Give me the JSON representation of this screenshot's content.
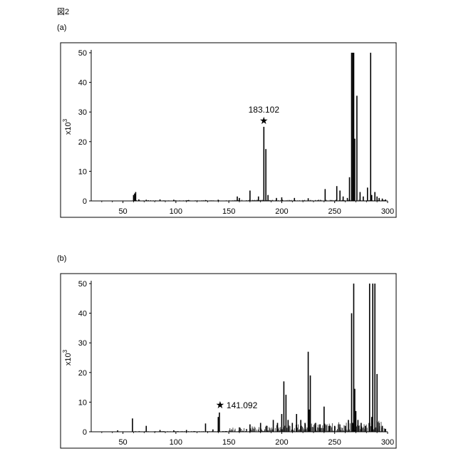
{
  "figure": {
    "title": "図2"
  },
  "chart_data": [
    {
      "type": "bar",
      "panel_label": "(a)",
      "ylabel_base": "x10",
      "ylabel_exp": "3",
      "xlim": [
        20,
        300
      ],
      "ylim": [
        0,
        50
      ],
      "xticks": [
        50,
        100,
        150,
        200,
        250,
        300
      ],
      "yticks": [
        0,
        10,
        20,
        30,
        40,
        50
      ],
      "grid": false,
      "annotation": {
        "x": 183.102,
        "y": 25,
        "marker": "★",
        "text": "183.102"
      },
      "series": [
        {
          "values": [
            [
              60,
              2
            ],
            [
              61,
              2.5
            ],
            [
              62,
              3
            ],
            [
              65,
              0.5
            ],
            [
              72,
              0.4
            ],
            [
              85,
              0.5
            ],
            [
              98,
              0.4
            ],
            [
              112,
              0.3
            ],
            [
              128,
              0.3
            ],
            [
              140,
              0.4
            ],
            [
              158,
              1.5
            ],
            [
              160,
              1
            ],
            [
              170,
              3.5
            ],
            [
              178,
              1.5
            ],
            [
              183.102,
              25
            ],
            [
              185,
              17.5
            ],
            [
              187,
              2
            ],
            [
              195,
              1
            ],
            [
              200,
              1.2
            ],
            [
              212,
              1
            ],
            [
              225,
              0.9
            ],
            [
              241,
              4
            ],
            [
              252,
              5
            ],
            [
              255,
              3.5
            ],
            [
              258,
              1.5
            ],
            [
              262,
              1
            ],
            [
              264,
              8
            ],
            [
              266,
              50
            ],
            [
              267,
              50
            ],
            [
              268,
              50
            ],
            [
              269,
              21
            ],
            [
              271,
              35.5
            ],
            [
              274,
              3
            ],
            [
              277,
              1.5
            ],
            [
              281,
              4.5
            ],
            [
              284,
              50
            ],
            [
              285,
              2
            ],
            [
              288,
              3
            ],
            [
              290,
              1.5
            ],
            [
              292,
              1
            ],
            [
              295,
              0.8
            ],
            [
              298,
              0.5
            ]
          ]
        }
      ]
    },
    {
      "type": "bar",
      "panel_label": "(b)",
      "ylabel_base": "x10",
      "ylabel_exp": "3",
      "xlim": [
        20,
        300
      ],
      "ylim": [
        0,
        50
      ],
      "xticks": [
        50,
        100,
        150,
        200,
        250,
        300
      ],
      "yticks": [
        0,
        10,
        20,
        30,
        40,
        50
      ],
      "grid": false,
      "annotation": {
        "x": 141.092,
        "y": 7,
        "marker": "★",
        "text": "141.092"
      },
      "series": [
        {
          "values": [
            [
              45,
              0.5
            ],
            [
              59,
              4.5
            ],
            [
              72,
              2
            ],
            [
              85,
              0.6
            ],
            [
              98,
              0.5
            ],
            [
              110,
              0.6
            ],
            [
              128,
              2.8
            ],
            [
              135,
              0.8
            ],
            [
              140,
              5
            ],
            [
              141.092,
              6.5
            ],
            [
              160,
              1.5
            ],
            [
              170,
              2.5
            ],
            [
              180,
              3
            ],
            [
              186,
              2
            ],
            [
              192,
              4
            ],
            [
              196,
              3
            ],
            [
              200,
              6
            ],
            [
              202,
              17
            ],
            [
              204,
              12.5
            ],
            [
              206,
              4
            ],
            [
              210,
              3
            ],
            [
              214,
              6
            ],
            [
              218,
              4
            ],
            [
              222,
              3
            ],
            [
              225,
              27
            ],
            [
              226,
              7.5
            ],
            [
              227,
              19
            ],
            [
              232,
              3
            ],
            [
              236,
              2.5
            ],
            [
              240,
              8.5
            ],
            [
              245,
              2
            ],
            [
              250,
              2
            ],
            [
              255,
              1.5
            ],
            [
              260,
              2
            ],
            [
              263,
              4
            ],
            [
              266,
              40
            ],
            [
              267,
              3
            ],
            [
              268,
              50
            ],
            [
              269,
              14.5
            ],
            [
              270,
              7
            ],
            [
              272,
              4
            ],
            [
              275,
              3
            ],
            [
              279,
              2
            ],
            [
              283,
              50
            ],
            [
              285,
              5
            ],
            [
              286,
              50
            ],
            [
              288,
              50
            ],
            [
              290,
              19.5
            ],
            [
              292,
              3
            ],
            [
              295,
              2
            ],
            [
              298,
              1
            ]
          ]
        }
      ]
    }
  ]
}
